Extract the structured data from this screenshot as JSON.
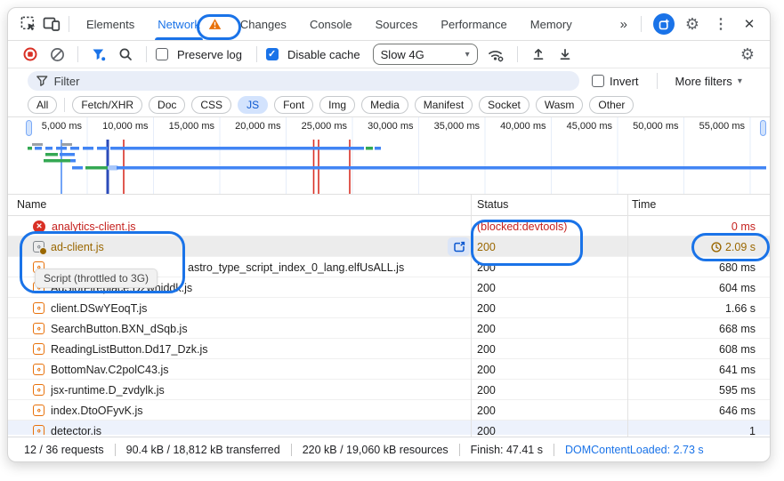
{
  "tab_bar": {
    "tabs": [
      "Elements",
      "Network",
      "Changes",
      "Console",
      "Sources",
      "Performance",
      "Memory"
    ],
    "selected_tab": "Network"
  },
  "toolbar": {
    "preserve_log_label": "Preserve log",
    "preserve_log_checked": false,
    "disable_cache_label": "Disable cache",
    "disable_cache_checked": true,
    "throttling_value": "Slow 4G"
  },
  "filter_bar": {
    "placeholder": "Filter",
    "invert_label": "Invert",
    "invert_checked": false,
    "more_filters_label": "More filters"
  },
  "chips": {
    "items": [
      "All",
      "Fetch/XHR",
      "Doc",
      "CSS",
      "JS",
      "Font",
      "Img",
      "Media",
      "Manifest",
      "Socket",
      "Wasm",
      "Other"
    ],
    "selected": "JS"
  },
  "timeline": {
    "labels": [
      "5,000 ms",
      "10,000 ms",
      "15,000 ms",
      "20,000 ms",
      "25,000 ms",
      "30,000 ms",
      "35,000 ms",
      "40,000 ms",
      "45,000 ms",
      "50,000 ms",
      "55,000 ms"
    ]
  },
  "table": {
    "columns": [
      "Name",
      "Status",
      "Time"
    ],
    "rows": [
      {
        "name": "analytics-client.js",
        "status": "(blocked:devtools)",
        "time": "0 ms",
        "state": "error"
      },
      {
        "name": "ad-client.js",
        "status": "200",
        "time": "2.09 s",
        "state": "throttled"
      },
      {
        "name": "astro_type_script_index_0_lang.elfUsALL.js",
        "status": "200",
        "time": "680 ms",
        "state": "occluded"
      },
      {
        "name": "AdSlotFireplace.D2whiddk.js",
        "status": "200",
        "time": "604 ms",
        "state": "normal"
      },
      {
        "name": "client.DSwYEoqT.js",
        "status": "200",
        "time": "1.66 s",
        "state": "normal"
      },
      {
        "name": "SearchButton.BXN_dSqb.js",
        "status": "200",
        "time": "668 ms",
        "state": "normal"
      },
      {
        "name": "ReadingListButton.Dd17_Dzk.js",
        "status": "200",
        "time": "608 ms",
        "state": "normal"
      },
      {
        "name": "BottomNav.C2polC43.js",
        "status": "200",
        "time": "641 ms",
        "state": "normal"
      },
      {
        "name": "jsx-runtime.D_zvdylk.js",
        "status": "200",
        "time": "595 ms",
        "state": "normal"
      },
      {
        "name": "index.DtoOFyvK.js",
        "status": "200",
        "time": "646 ms",
        "state": "normal"
      },
      {
        "name": "detector.js",
        "status": "200",
        "time": "1",
        "state": "clipped"
      }
    ]
  },
  "tooltip": {
    "text": "Script (throttled to 3G)"
  },
  "footer": {
    "items": [
      "12 / 36 requests",
      "90.4 kB / 18,812 kB transferred",
      "220 kB / 19,060 kB resources",
      "Finish: 47.41 s",
      "DOMContentLoaded: 2.73 s"
    ]
  },
  "icons": {
    "caret_down": "▾",
    "more_tabs": "»",
    "kebab": "⋮",
    "close": "✕",
    "gear": "⚙"
  },
  "colors": {
    "accent_blue": "#1a73e8",
    "selected_chip_bg": "#d3e3fd",
    "error_red": "#c5221f",
    "throttle_amber": "#9a6700",
    "warning_orange": "#e8710a",
    "callout_blue": "#1a73e8"
  }
}
